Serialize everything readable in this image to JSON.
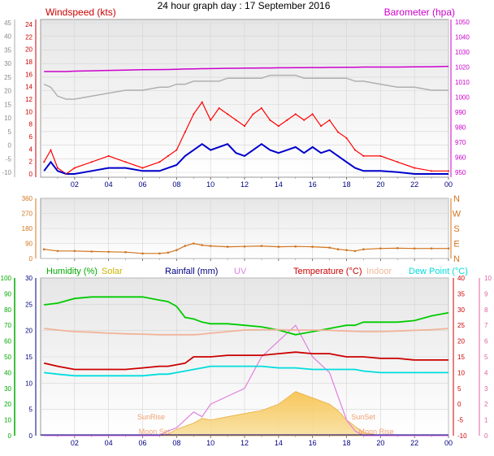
{
  "title": "24 hour graph day : 17 September 2016",
  "x_ticks": [
    "02",
    "04",
    "06",
    "08",
    "10",
    "12",
    "14",
    "16",
    "18",
    "20",
    "22",
    "00"
  ],
  "chart_data": [
    {
      "type": "line",
      "panel": "wind-barometer",
      "left_axis_title": "Windspeed (kts)",
      "right_axis_title": "Barometer (hpa)",
      "left_ticks_a": [
        "45",
        "40",
        "35",
        "30",
        "25",
        "20",
        "15",
        "10",
        "5",
        "0",
        "-5",
        "-10"
      ],
      "left_ticks_b": [
        "24",
        "22",
        "20",
        "18",
        "16",
        "14",
        "12",
        "10",
        "8",
        "6",
        "4",
        "2",
        "0"
      ],
      "right_ticks": [
        "1050",
        "1040",
        "1030",
        "1020",
        "1010",
        "1000",
        "990",
        "980",
        "970",
        "960",
        "950"
      ],
      "x": [
        0.2,
        0.6,
        1,
        1.5,
        2,
        3,
        4,
        5,
        6,
        7,
        7.5,
        8,
        8.5,
        9,
        9.5,
        10,
        10.5,
        11,
        11.5,
        12,
        12.5,
        13,
        13.5,
        14,
        14.5,
        15,
        15.5,
        16,
        16.5,
        17,
        17.5,
        18,
        18.5,
        19,
        20,
        21,
        22,
        23,
        24
      ],
      "ylim_kts": [
        0,
        25
      ],
      "ylim_hpa": [
        950,
        1050
      ],
      "series": [
        {
          "name": "Wind gust",
          "color": "#ff0000",
          "values": [
            2,
            4,
            1,
            0,
            1,
            2,
            3,
            2,
            1,
            2,
            3,
            4,
            7,
            10,
            12,
            9,
            11,
            10,
            9,
            8,
            10,
            11,
            9,
            8,
            9,
            10,
            9,
            10,
            8,
            9,
            7,
            6,
            4,
            3,
            3,
            2,
            1,
            0.5,
            0.5
          ]
        },
        {
          "name": "Wind average",
          "color": "#0000cc",
          "values": [
            0.5,
            2,
            0.5,
            0,
            0,
            0.5,
            1,
            1,
            0.5,
            0.5,
            1,
            1.5,
            3,
            4,
            5,
            4,
            4.5,
            5,
            3.5,
            3,
            4,
            5,
            4,
            3.5,
            4,
            4.5,
            3.5,
            4.5,
            3.5,
            4,
            3,
            2,
            1,
            0.5,
            0.5,
            0.3,
            0,
            0,
            0
          ]
        },
        {
          "name": "Barometer",
          "color": "#cc00cc",
          "values": [
            1017,
            1017,
            1017,
            1017,
            1017.3,
            1017.5,
            1017.8,
            1018,
            1018.2,
            1018.3,
            1018.4,
            1018.5,
            1018.7,
            1018.8,
            1018.9,
            1019,
            1019.1,
            1019.2,
            1019.2,
            1019.3,
            1019.3,
            1019.4,
            1019.4,
            1019.5,
            1019.5,
            1019.6,
            1019.6,
            1019.7,
            1019.7,
            1019.8,
            1019.8,
            1019.9,
            1019.9,
            1020,
            1020,
            1020,
            1020.1,
            1020.2,
            1020.5
          ]
        },
        {
          "name": "Wind (grey)",
          "color": "#b0b0b0",
          "values": [
            15,
            14.5,
            13,
            12.5,
            12.5,
            13,
            13.5,
            14,
            14,
            14.5,
            14.5,
            15,
            15,
            15.5,
            15.5,
            15.5,
            15.5,
            16,
            16,
            16,
            16,
            16,
            16.5,
            16.5,
            16.5,
            16.5,
            16,
            16,
            16,
            16,
            16,
            16,
            15.5,
            15.5,
            15,
            14.5,
            14.5,
            14,
            14
          ]
        }
      ]
    },
    {
      "type": "scatter",
      "panel": "wind-direction",
      "left_ticks": [
        "360",
        "270",
        "180",
        "90",
        "0"
      ],
      "right_ticks": [
        "N",
        "W",
        "S",
        "E",
        "N"
      ],
      "ylim": [
        0,
        360
      ],
      "x": [
        0.2,
        1,
        2,
        3,
        4,
        5,
        6,
        7,
        7.5,
        8,
        8.5,
        9,
        9.5,
        10,
        11,
        12,
        13,
        14,
        15,
        16,
        17,
        17.5,
        18,
        18.5,
        19,
        20,
        21,
        22,
        23,
        24
      ],
      "series": [
        {
          "name": "Wind direction",
          "color": "#d2751f",
          "values": [
            55,
            45,
            45,
            42,
            40,
            38,
            30,
            30,
            35,
            50,
            75,
            90,
            80,
            75,
            70,
            72,
            75,
            70,
            72,
            70,
            65,
            55,
            50,
            45,
            55,
            60,
            62,
            60,
            60,
            60
          ]
        }
      ]
    },
    {
      "type": "line",
      "panel": "temperature-humidity",
      "legend": [
        "Humidity (%)",
        "Solar",
        "Rainfall (mm)",
        "UV",
        "Temperature (°C)",
        "Indoor",
        "Dew Point (°C)"
      ],
      "legend_colors": [
        "#00aa00",
        "#ccb400",
        "#000080",
        "#e080e0",
        "#cc0000",
        "#f0b898",
        "#00dddd"
      ],
      "left_ticks_humidity": [
        "100",
        "90",
        "80",
        "70",
        "60",
        "50",
        "40",
        "30",
        "20",
        "10",
        "0"
      ],
      "left_ticks_rain": [
        "30",
        "25",
        "20",
        "15",
        "10",
        "5",
        "0"
      ],
      "right_ticks_temp": [
        "40",
        "35",
        "30",
        "25",
        "20",
        "15",
        "10",
        "5",
        "0",
        "-5",
        "-10"
      ],
      "right_ticks_uv": [
        "10",
        "9",
        "8",
        "7",
        "6",
        "5",
        "4",
        "3",
        "2",
        "1",
        "0"
      ],
      "annotations": [
        "SunRise",
        "SunSet",
        "Moon Set",
        "Moon Rise"
      ],
      "x": [
        0.2,
        1,
        2,
        3,
        4,
        5,
        6,
        7,
        7.5,
        8,
        8.5,
        9,
        9.5,
        10,
        11,
        12,
        13,
        14,
        15,
        16,
        17,
        17.5,
        18,
        18.5,
        19,
        20,
        21,
        22,
        23,
        24
      ],
      "ylim_temp": [
        -10,
        40
      ],
      "series": [
        {
          "name": "Humidity (%)",
          "color": "#00cc00",
          "unit": "%",
          "values": [
            83,
            84,
            87,
            88,
            88,
            88,
            88,
            86,
            85,
            82,
            75,
            74,
            72,
            71,
            71,
            70,
            69,
            67,
            64,
            66,
            68,
            69,
            70,
            70,
            72,
            72,
            72,
            73,
            76,
            78
          ]
        },
        {
          "name": "Temperature (°C)",
          "color": "#cc0000",
          "values": [
            13,
            12,
            11,
            11,
            11,
            11,
            11.5,
            12,
            12,
            12.5,
            13,
            15,
            15,
            15,
            15.5,
            15.5,
            15.5,
            16,
            16.5,
            16,
            16,
            15.5,
            15,
            15,
            15,
            14.5,
            14.5,
            14,
            14,
            14
          ]
        },
        {
          "name": "Indoor",
          "color": "#f2b39a",
          "values": [
            24,
            23.5,
            23,
            22.8,
            22.5,
            22.3,
            22.2,
            22,
            22,
            22,
            22,
            22,
            22.2,
            22.5,
            23,
            23.5,
            23.6,
            23.6,
            23.5,
            23.5,
            23.4,
            23.3,
            23.2,
            23.1,
            23,
            23,
            23.2,
            23.4,
            23.6,
            24
          ]
        },
        {
          "name": "Dew Point (°C)",
          "color": "#00dddd",
          "values": [
            10,
            9.5,
            9,
            9,
            9,
            9,
            9,
            9.5,
            9.5,
            10,
            10.5,
            11,
            11.5,
            12,
            12,
            12,
            12,
            11.5,
            11.5,
            11,
            11,
            11,
            11,
            11,
            10.5,
            10,
            10,
            10,
            10,
            10
          ]
        },
        {
          "name": "Solar",
          "color": "#f7c24a",
          "values": [
            -10,
            -10,
            -10,
            -10,
            -10,
            -10,
            -10,
            -10,
            -9.5,
            -8,
            -7,
            -6,
            -4.5,
            -5,
            -4,
            -3,
            -2,
            0,
            4,
            2,
            0,
            -2,
            -5,
            -7,
            -9,
            -10,
            -10,
            -10,
            -10,
            -10
          ]
        },
        {
          "name": "UV",
          "color": "#e080e0",
          "values": [
            0,
            0,
            0,
            0,
            0,
            0,
            0,
            0,
            0.3,
            0.5,
            1,
            1.5,
            1.2,
            2,
            2.5,
            3,
            5,
            6,
            7,
            5,
            4,
            2.5,
            1,
            0.3,
            0,
            0,
            0,
            0,
            0,
            0
          ]
        }
      ]
    }
  ],
  "colors": {
    "panel_bg_top": "#f0f0f0",
    "panel_bg_bottom": "#ffffff",
    "axis_green": "#00aa00",
    "axis_red": "#cc0000",
    "axis_pink": "#e060a0",
    "axis_blue": "#0000cc",
    "title_magenta": "#cc00cc"
  }
}
